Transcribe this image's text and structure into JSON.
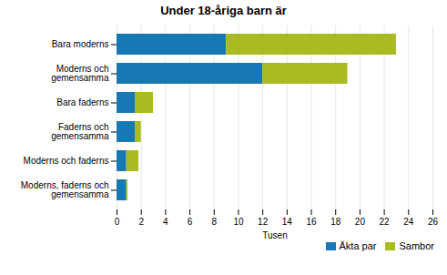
{
  "chart_data": {
    "type": "bar",
    "orientation": "horizontal",
    "stacked": true,
    "title": "Under 18-åriga barn är",
    "categories": [
      "Bara moderns",
      "Moderns och\ngemensamma",
      "Bara faderns",
      "Faderns och\ngemensamma",
      "Moderns och faderns",
      "Moderns, faderns och\ngemensamma"
    ],
    "series": [
      {
        "name": "Äkta par",
        "color": "#1878b4",
        "values": [
          9.0,
          12.0,
          1.5,
          1.5,
          0.8,
          0.8
        ]
      },
      {
        "name": "Sambor",
        "color": "#aabb22",
        "values": [
          14.0,
          7.0,
          1.5,
          0.5,
          1.0,
          0.1
        ]
      }
    ],
    "xlabel": "Tusen",
    "xlim": [
      0,
      26
    ],
    "xticks": [
      0,
      2,
      4,
      6,
      8,
      10,
      12,
      14,
      16,
      18,
      20,
      22,
      24,
      26
    ],
    "grid": true,
    "legend": "lower right"
  }
}
